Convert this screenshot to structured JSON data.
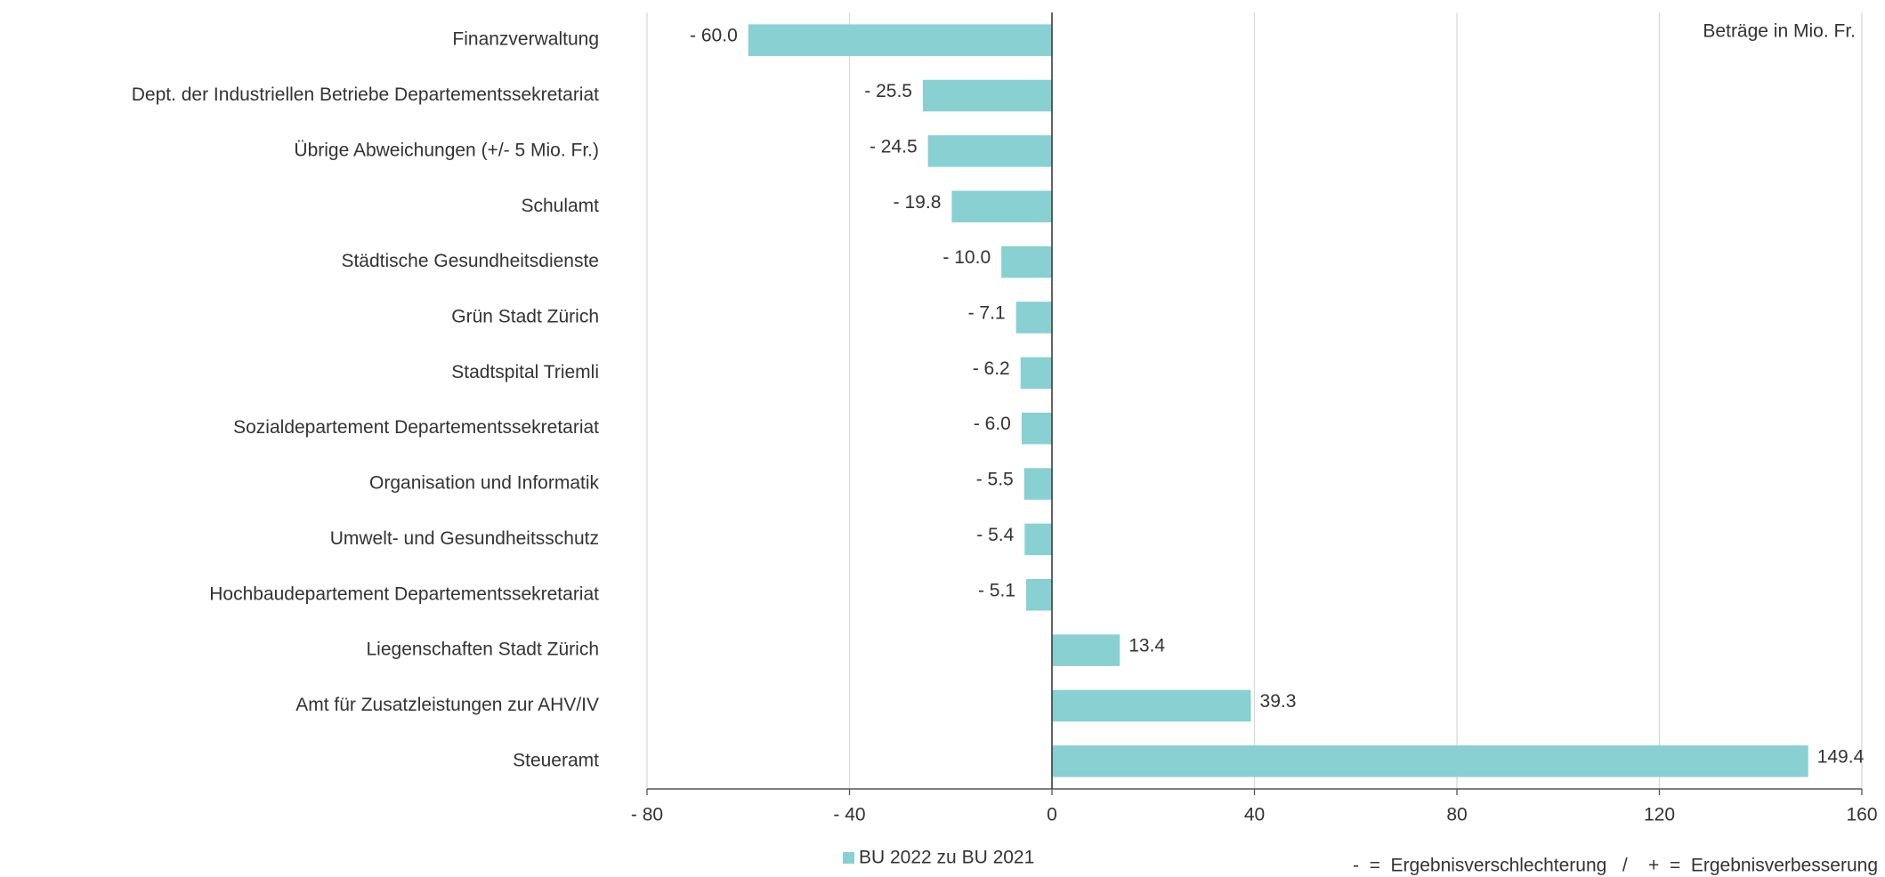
{
  "chart_data": {
    "type": "bar",
    "orientation": "horizontal",
    "annotation": "Beträge in Mio. Fr.",
    "note": "-  =  Ergebnisverschlechterung   /    +  =  Ergebnisverbesserung",
    "categories": [
      "Finanzverwaltung",
      "Dept. der Industriellen Betriebe Departementssekretariat",
      "Übrige Abweichungen (+/- 5 Mio. Fr.)",
      "Schulamt",
      "Städtische Gesundheitsdienste",
      "Grün Stadt Zürich",
      "Stadtspital Triemli",
      "Sozialdepartement Departementssekretariat",
      "Organisation und Informatik",
      "Umwelt- und Gesundheitsschutz",
      "Hochbaudepartement Departementssekretariat",
      "Liegenschaften Stadt Zürich",
      "Amt für Zusatzleistungen zur AHV/IV",
      "Steueramt"
    ],
    "series": [
      {
        "name": "BU 2022 zu BU 2021",
        "color": "#88d0d2",
        "values": [
          -60.0,
          -25.5,
          -24.5,
          -19.8,
          -10.0,
          -7.1,
          -6.2,
          -6.0,
          -5.5,
          -5.4,
          -5.1,
          13.4,
          39.3,
          149.4
        ],
        "value_labels": [
          "- 60.0",
          "- 25.5",
          "- 24.5",
          "- 19.8",
          "- 10.0",
          "- 7.1",
          "- 6.2",
          "- 6.0",
          "- 5.5",
          "- 5.4",
          "- 5.1",
          "13.4",
          "39.3",
          "149.4"
        ]
      }
    ],
    "xlim": [
      -80,
      160
    ],
    "xticks": [
      {
        "value": -80,
        "label": "- 80"
      },
      {
        "value": -40,
        "label": "- 40"
      },
      0,
      40,
      80,
      120,
      160
    ],
    "grid": true,
    "legend": "bottom"
  }
}
